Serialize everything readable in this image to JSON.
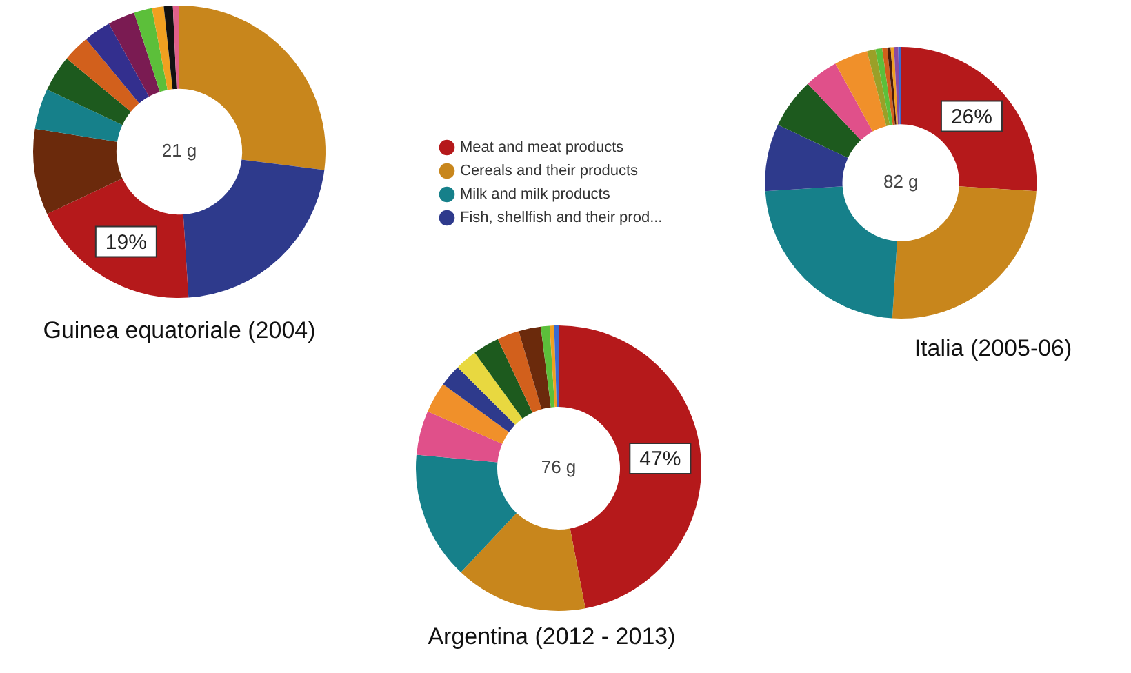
{
  "chart_data": [
    {
      "type": "donut",
      "title": "Guinea equatoriale (2004)",
      "annotations": [
        "21 g"
      ],
      "legend": false,
      "categories": [
        null,
        null,
        null,
        null,
        null,
        null,
        null,
        null,
        null,
        null,
        null,
        null,
        null
      ],
      "values": [
        27,
        22,
        19,
        9.5,
        4.5,
        4,
        3,
        3,
        3,
        2,
        1.3,
        1,
        0.7
      ],
      "value_labels": [
        null,
        null,
        "19%",
        null,
        null,
        null,
        null,
        null,
        null,
        null,
        null,
        null,
        null
      ],
      "colors": [
        "#c8861c",
        "#2e3a8c",
        "#b5191b",
        "#6b2a0c",
        "#16808a",
        "#1d5a1e",
        "#d2601c",
        "#332f8e",
        "#7a1b52",
        "#5cbf3a",
        "#f0a020",
        "#111111",
        "#e0608a"
      ]
    },
    {
      "type": "donut",
      "title": "Italia (2005-06)",
      "annotations": [
        "82 g"
      ],
      "legend": "left",
      "categories": [
        "Meat and meat products",
        "Cereals and their products",
        "Milk and milk products",
        "Fish, shellfish and their prod...",
        null,
        null,
        null,
        null,
        null,
        null,
        null,
        null,
        null,
        null
      ],
      "values": [
        26,
        25,
        23,
        8,
        6,
        4,
        4,
        1,
        0.8,
        0.6,
        0.4,
        0.4,
        0.5,
        0.3
      ],
      "value_labels": [
        "26%",
        null,
        null,
        null,
        null,
        null,
        null,
        null,
        null,
        null,
        null,
        null,
        null,
        null
      ],
      "colors": [
        "#b5191b",
        "#c8861c",
        "#16808a",
        "#2e3a8c",
        "#1d5a1e",
        "#e0508a",
        "#f0902a",
        "#9aa028",
        "#5cbf3a",
        "#d2601c",
        "#4a1a0a",
        "#f0a020",
        "#8a4aa0",
        "#3a6ad0"
      ]
    },
    {
      "type": "donut",
      "title": "Argentina (2012 - 2013)",
      "annotations": [
        "76 g"
      ],
      "legend": false,
      "categories": [
        null,
        null,
        null,
        null,
        null,
        null,
        null,
        null,
        null,
        null,
        null,
        null,
        null
      ],
      "values": [
        47,
        15,
        14.5,
        5,
        3.5,
        2.5,
        2.5,
        3,
        2.5,
        2.5,
        1,
        0.5,
        0.5
      ],
      "value_labels": [
        "47%",
        null,
        null,
        null,
        null,
        null,
        null,
        null,
        null,
        null,
        null,
        null,
        null
      ],
      "colors": [
        "#b5191b",
        "#c8861c",
        "#16808a",
        "#e0508a",
        "#f0902a",
        "#2e3a8c",
        "#e8d840",
        "#1d5a1e",
        "#d2601c",
        "#6b2a0c",
        "#5cbf3a",
        "#f0a020",
        "#3a6ad0"
      ]
    }
  ]
}
